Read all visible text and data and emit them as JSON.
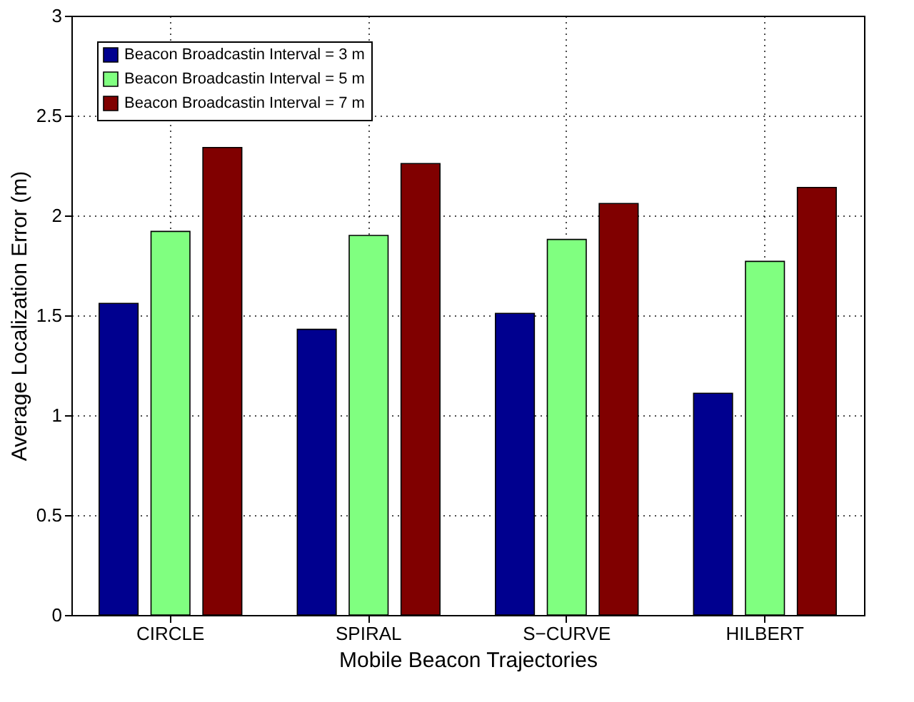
{
  "chart_data": {
    "type": "bar",
    "xlabel": "Mobile Beacon Trajectories",
    "ylabel": "Average Localization Error (m)",
    "categories": [
      "CIRCLE",
      "SPIRAL",
      "S−CURVE",
      "HILBERT"
    ],
    "series": [
      {
        "name": "Beacon Broadcastin Interval = 3 m",
        "color": "#00008f",
        "values": [
          1.56,
          1.43,
          1.51,
          1.11
        ]
      },
      {
        "name": "Beacon Broadcastin Interval = 5 m",
        "color": "#80ff80",
        "values": [
          1.92,
          1.9,
          1.88,
          1.77
        ]
      },
      {
        "name": "Beacon Broadcastin Interval = 7 m",
        "color": "#800000",
        "values": [
          2.34,
          2.26,
          2.06,
          2.14
        ]
      }
    ],
    "ylim": [
      0,
      3
    ],
    "yticks": [
      0,
      0.5,
      1,
      1.5,
      2,
      2.5,
      3
    ],
    "grid": true,
    "legend": "top left"
  }
}
